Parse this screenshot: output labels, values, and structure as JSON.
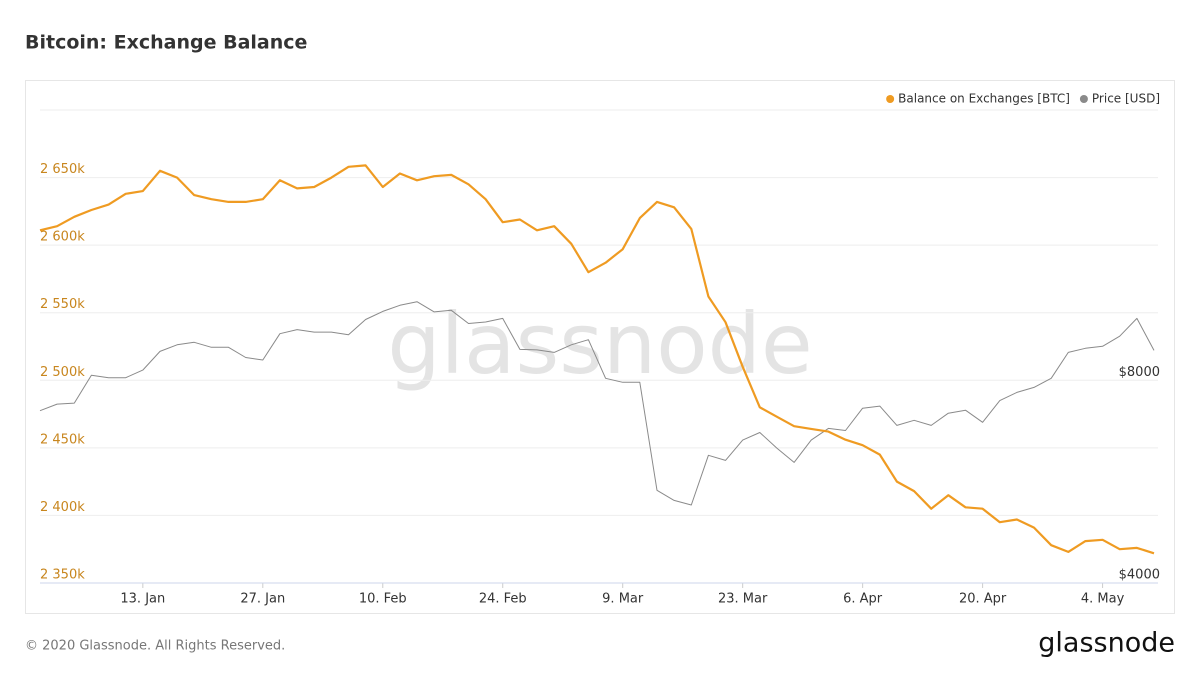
{
  "chart_data": {
    "type": "line",
    "title": "Bitcoin: Exchange Balance",
    "categories": [
      null,
      null,
      null,
      null,
      null,
      null,
      "13. Jan",
      null,
      null,
      null,
      null,
      null,
      null,
      "27. Jan",
      null,
      null,
      null,
      null,
      null,
      null,
      "10. Feb",
      null,
      null,
      null,
      null,
      null,
      null,
      "24. Feb",
      null,
      null,
      null,
      null,
      null,
      null,
      "9. Mar",
      null,
      null,
      null,
      null,
      null,
      null,
      "23. Mar",
      null,
      null,
      null,
      null,
      null,
      null,
      "6. Apr",
      null,
      null,
      null,
      null,
      null,
      null,
      "20. Apr",
      null,
      null,
      null,
      null,
      null,
      null,
      "4. May",
      null,
      null,
      null
    ],
    "series": [
      {
        "name": "Balance on Exchanges [BTC]",
        "color": "#ef9b22",
        "axis": "y",
        "values": [
          2611000,
          2614000,
          2621000,
          2626000,
          2630000,
          2638000,
          2640000,
          2655000,
          2650000,
          2637000,
          2634000,
          2632000,
          2632000,
          2634000,
          2648000,
          2642000,
          2643000,
          2650000,
          2658000,
          2659000,
          2643000,
          2653000,
          2648000,
          2651000,
          2652000,
          2645000,
          2634000,
          2617000,
          2619000,
          2611000,
          2614000,
          2601000,
          2580000,
          2587000,
          2597000,
          2620000,
          2632000,
          2628000,
          2612000,
          2562000,
          2543000,
          2510000,
          2480000,
          2473000,
          2466000,
          2464000,
          2462000,
          2456000,
          2452000,
          2445000,
          2425000,
          2418000,
          2405000,
          2415000,
          2406000,
          2405000,
          2395000,
          2397000,
          2391000,
          2378000,
          2373000,
          2381000,
          2382000,
          2375000,
          2376000,
          2372000
        ]
      },
      {
        "name": "Price [USD]",
        "color": "#8a8a8a",
        "axis": "y2",
        "values": [
          7400,
          7530,
          7550,
          8100,
          8050,
          8050,
          8200,
          8570,
          8700,
          8750,
          8650,
          8650,
          8450,
          8400,
          8920,
          9000,
          8950,
          8950,
          8900,
          9200,
          9360,
          9480,
          9550,
          9350,
          9380,
          9120,
          9150,
          9220,
          8610,
          8600,
          8550,
          8700,
          8800,
          8040,
          7960,
          7960,
          5830,
          5630,
          5540,
          6520,
          6420,
          6820,
          6970,
          6660,
          6380,
          6820,
          7050,
          7010,
          7450,
          7490,
          7110,
          7210,
          7110,
          7350,
          7410,
          7170,
          7600,
          7760,
          7860,
          8040,
          8550,
          8630,
          8670,
          8870,
          9220,
          8590
        ]
      }
    ],
    "ylim": [
      2350000,
      2700000
    ],
    "yticks": [
      {
        "value": 2350000,
        "label": "2 350k"
      },
      {
        "value": 2400000,
        "label": "2 400k"
      },
      {
        "value": 2450000,
        "label": "2 450k"
      },
      {
        "value": 2500000,
        "label": "2 500k"
      },
      {
        "value": 2550000,
        "label": "2 550k"
      },
      {
        "value": 2600000,
        "label": "2 600k"
      },
      {
        "value": 2650000,
        "label": "2 650k"
      }
    ],
    "y2lim": [
      4000,
      13333
    ],
    "y2ticks": [
      {
        "value": 4000,
        "label": "$4000"
      },
      {
        "value": 8000,
        "label": "$8000"
      }
    ],
    "grid": true,
    "legend": "top-right"
  },
  "watermark": "glassnode",
  "footer": {
    "copyright": "© 2020 Glassnode. All Rights Reserved.",
    "logo": "glassnode"
  }
}
